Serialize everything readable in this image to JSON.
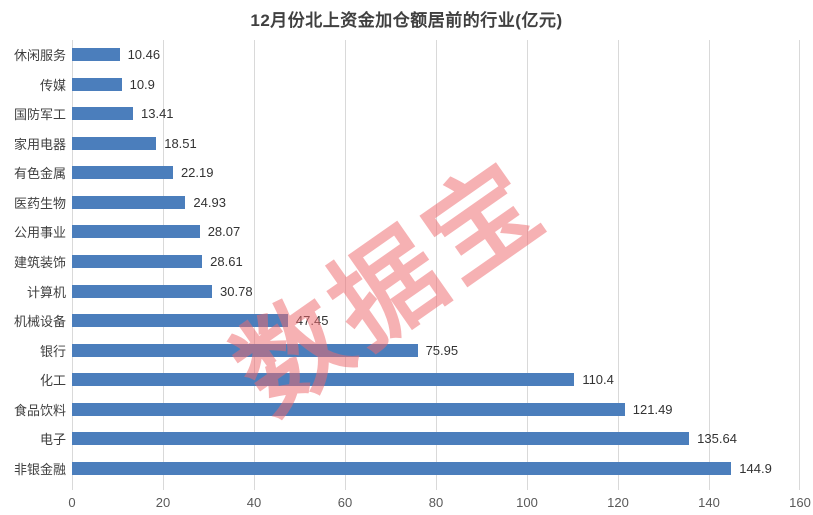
{
  "title": "12月份北上资金加仓额居前的行业(亿元)",
  "watermark": "数据宝",
  "colors": {
    "bar": "#4b7ebc",
    "gridline": "#d9d9d9",
    "title_text": "#404040",
    "category_text": "#3f3f3f",
    "value_text": "#333333",
    "tick_text": "#595959",
    "watermark_text": "#ef6a6f"
  },
  "chart_data": {
    "type": "bar",
    "orientation": "horizontal",
    "title": "12月份北上资金加仓额居前的行业(亿元)",
    "xlabel": "",
    "ylabel": "",
    "categories": [
      "休闲服务",
      "传媒",
      "国防军工",
      "家用电器",
      "有色金属",
      "医药生物",
      "公用事业",
      "建筑装饰",
      "计算机",
      "机械设备",
      "银行",
      "化工",
      "食品饮料",
      "电子",
      "非银金融"
    ],
    "values": [
      10.46,
      10.9,
      13.41,
      18.51,
      22.19,
      24.93,
      28.07,
      28.61,
      30.78,
      47.45,
      75.95,
      110.4,
      121.49,
      135.64,
      144.9
    ],
    "value_labels": [
      "10.46",
      "10.9",
      "13.41",
      "18.51",
      "22.19",
      "24.93",
      "28.07",
      "28.61",
      "30.78",
      "47.45",
      "75.95",
      "110.4",
      "121.49",
      "135.64",
      "144.9"
    ],
    "xlim": [
      0,
      160
    ],
    "xticks": [
      0,
      20,
      40,
      60,
      80,
      100,
      120,
      140,
      160
    ],
    "grid": true,
    "legend": false,
    "category_order": "smallest-at-top"
  }
}
